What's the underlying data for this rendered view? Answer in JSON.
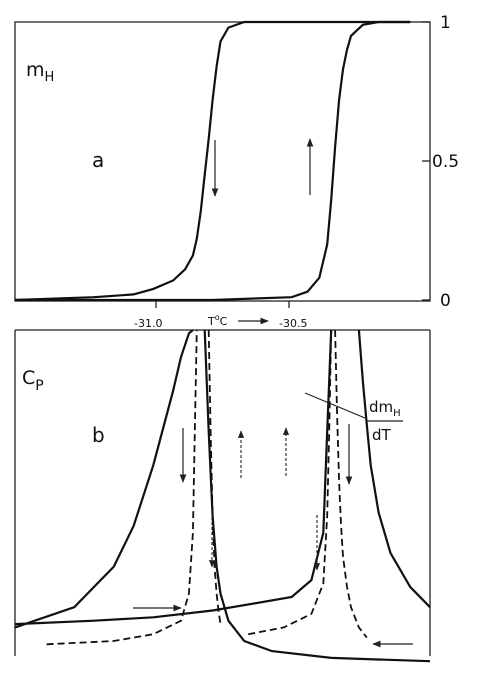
{
  "chart_data": [
    {
      "panel_label": "a",
      "type": "line",
      "ylabel_main": "m",
      "ylabel_sub": "H",
      "ylim": [
        0,
        1
      ],
      "y_ticks": [
        "0",
        "0.5",
        "1"
      ],
      "y_tick_values": [
        0,
        0.5,
        1
      ],
      "x_range": [
        -31.3,
        -30.25
      ],
      "series": [
        {
          "style": "solid",
          "direction": "cooling",
          "x": [
            -31.3,
            -31.1,
            -31.0,
            -30.95,
            -30.9,
            -30.87,
            -30.85,
            -30.84,
            -30.83,
            -30.82,
            -30.81,
            -30.8,
            -30.79,
            -30.78,
            -30.76,
            -30.72,
            -30.6,
            -30.3
          ],
          "y": [
            0.0,
            0.01,
            0.02,
            0.04,
            0.07,
            0.11,
            0.16,
            0.22,
            0.32,
            0.45,
            0.58,
            0.72,
            0.84,
            0.93,
            0.98,
            1.0,
            1.0,
            1.0
          ]
        },
        {
          "style": "solid",
          "direction": "heating",
          "x": [
            -31.3,
            -30.8,
            -30.6,
            -30.56,
            -30.53,
            -30.51,
            -30.5,
            -30.49,
            -30.48,
            -30.47,
            -30.46,
            -30.45,
            -30.42,
            -30.38,
            -30.3
          ],
          "y": [
            0.0,
            0.0,
            0.01,
            0.03,
            0.08,
            0.2,
            0.36,
            0.55,
            0.72,
            0.83,
            0.9,
            0.95,
            0.99,
            1.0,
            1.0
          ]
        }
      ]
    },
    {
      "panel_label": "b",
      "type": "line",
      "ylabel_main": "C",
      "ylabel_sub": "P",
      "x_range": [
        -31.3,
        -30.25
      ],
      "x_ticks": [
        "-31.0",
        "-30.5"
      ],
      "x_tick_values": [
        -31.0,
        -30.5
      ],
      "xlabel_main": "T",
      "xlabel_sup": "o",
      "xlabel_unit": "C",
      "annotation_num_main": "dm",
      "annotation_num_sub": "H",
      "annotation_den": "dT",
      "series": [
        {
          "style": "solid",
          "x": [
            -31.3,
            -31.15,
            -31.05,
            -31.0,
            -30.95,
            -30.9,
            -30.88,
            -30.86,
            -30.85
          ],
          "y": [
            0.12,
            0.18,
            0.3,
            0.42,
            0.6,
            0.82,
            0.92,
            0.99,
            1.0
          ]
        },
        {
          "style": "solid",
          "x": [
            -30.82,
            -30.81,
            -30.8,
            -30.79,
            -30.78,
            -30.76,
            -30.72,
            -30.65,
            -30.5,
            -30.25
          ],
          "y": [
            1.0,
            0.7,
            0.45,
            0.3,
            0.22,
            0.14,
            0.08,
            0.05,
            0.03,
            0.02
          ]
        },
        {
          "style": "solid",
          "x": [
            -31.3,
            -31.1,
            -30.95,
            -30.8,
            -30.7,
            -30.6,
            -30.55,
            -30.52,
            -30.51,
            -30.5
          ],
          "y": [
            0.13,
            0.14,
            0.15,
            0.17,
            0.19,
            0.21,
            0.26,
            0.4,
            0.7,
            1.0
          ]
        },
        {
          "style": "solid",
          "x": [
            -30.43,
            -30.42,
            -30.41,
            -30.4,
            -30.38,
            -30.35,
            -30.3,
            -30.25
          ],
          "y": [
            1.0,
            0.85,
            0.72,
            0.6,
            0.46,
            0.34,
            0.24,
            0.18
          ]
        },
        {
          "style": "dashed",
          "x": [
            -31.22,
            -31.05,
            -30.95,
            -30.88,
            -30.86,
            -30.85,
            -30.845,
            -30.84
          ],
          "y": [
            0.07,
            0.08,
            0.1,
            0.14,
            0.22,
            0.4,
            0.7,
            1.0
          ]
        },
        {
          "style": "dashed",
          "x": [
            -30.81,
            -30.805,
            -30.8,
            -30.795,
            -30.79,
            -30.785,
            -30.78
          ],
          "y": [
            1.0,
            0.7,
            0.45,
            0.3,
            0.22,
            0.17,
            0.13
          ]
        },
        {
          "style": "dashed",
          "x": [
            -30.71,
            -30.62,
            -30.55,
            -30.52,
            -30.51,
            -30.505,
            -30.5
          ],
          "y": [
            0.1,
            0.12,
            0.16,
            0.25,
            0.45,
            0.7,
            1.0
          ]
        },
        {
          "style": "dashed",
          "x": [
            -30.49,
            -30.485,
            -30.48,
            -30.475,
            -30.47,
            -30.46,
            -30.45,
            -30.43,
            -30.41
          ],
          "y": [
            1.0,
            0.75,
            0.55,
            0.42,
            0.33,
            0.24,
            0.18,
            0.12,
            0.09
          ]
        }
      ]
    }
  ]
}
